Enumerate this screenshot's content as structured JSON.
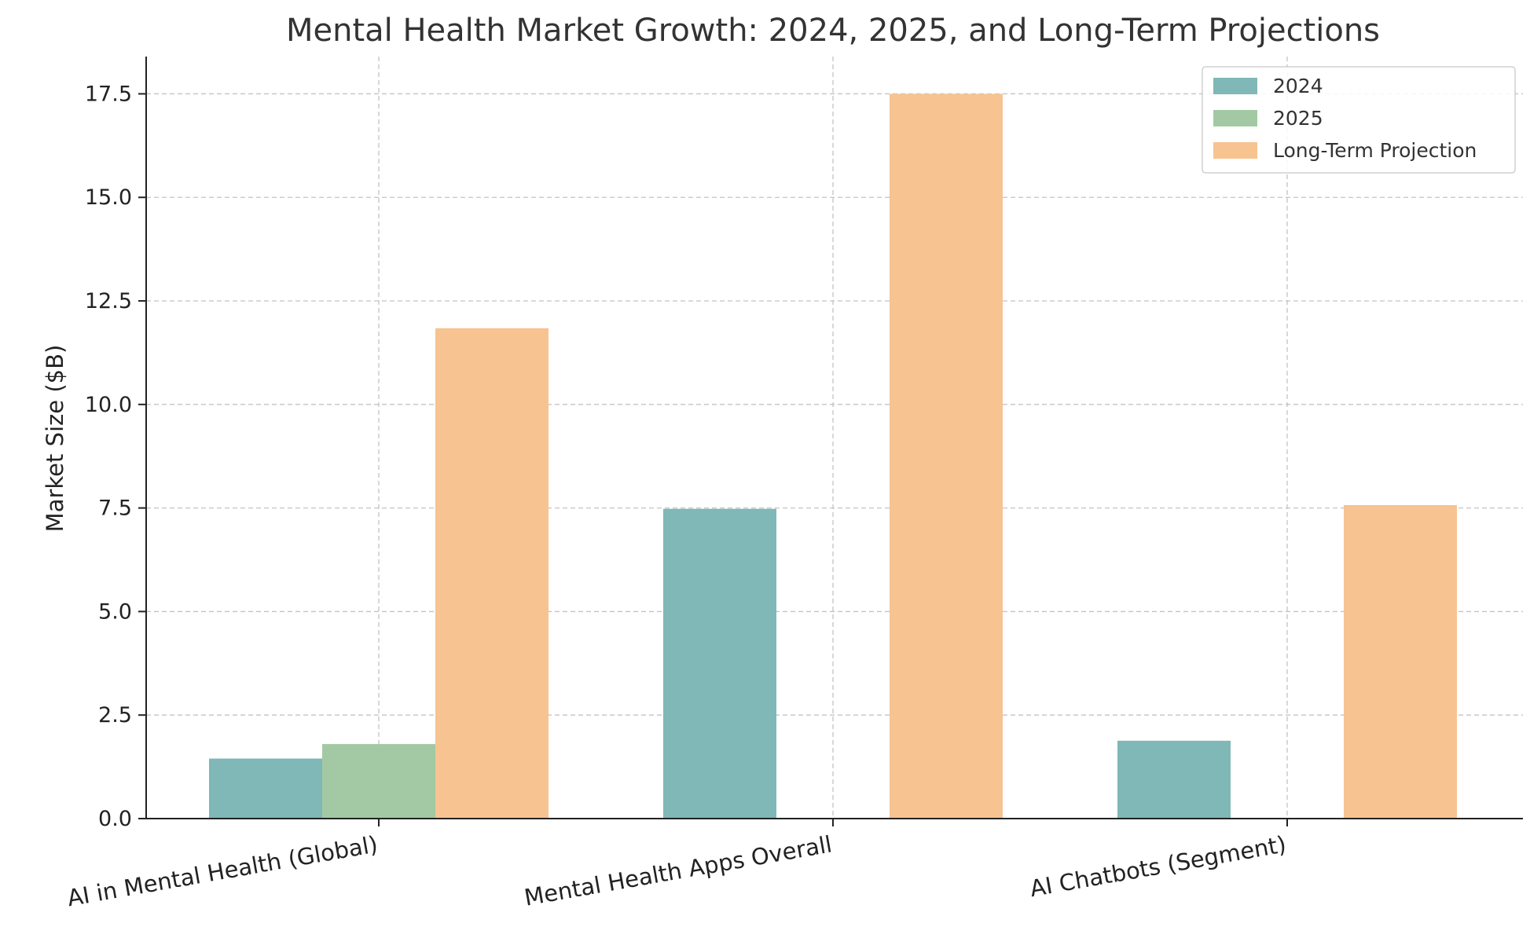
{
  "chart_data": {
    "type": "bar",
    "title": "Mental Health Market Growth: 2024, 2025, and Long-Term Projections",
    "xlabel": "",
    "ylabel": "Market Size ($B)",
    "categories": [
      "AI in Mental Health (Global)",
      "Mental Health Apps Overall",
      "AI Chatbots (Segment)"
    ],
    "series": [
      {
        "name": "2024",
        "color": "#7fb8b6",
        "values": [
          1.45,
          7.48,
          1.88
        ]
      },
      {
        "name": "2025",
        "color": "#a3c9a4",
        "values": [
          1.8,
          null,
          null
        ]
      },
      {
        "name": "Long-Term Projection",
        "color": "#f6c391",
        "values": [
          11.84,
          17.5,
          7.57
        ]
      }
    ],
    "ylim": [
      0,
      18.4
    ],
    "yticks": [
      "0.0",
      "2.5",
      "5.0",
      "7.5",
      "10.0",
      "12.5",
      "15.0",
      "17.5"
    ],
    "grid": true,
    "legend_position": "top-right"
  }
}
